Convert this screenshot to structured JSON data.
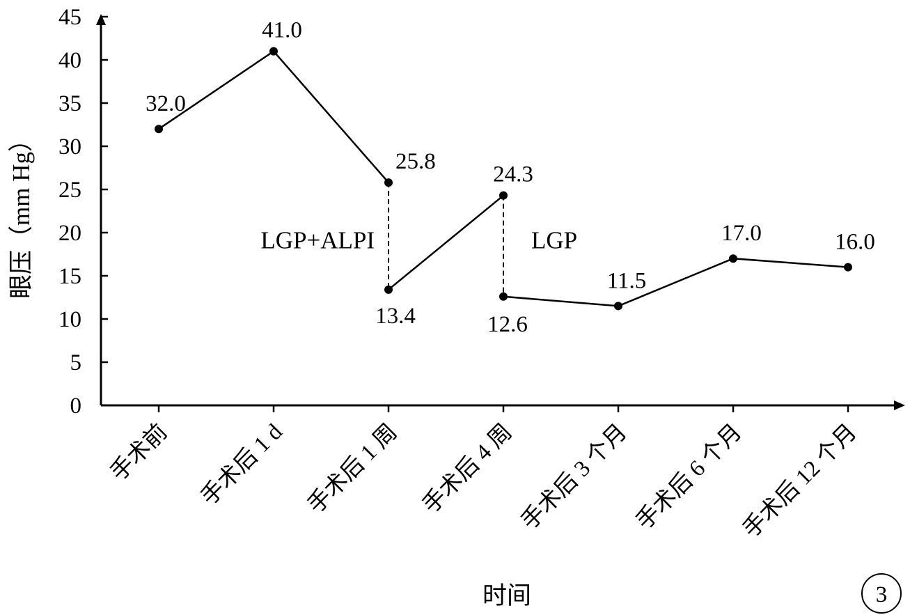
{
  "chart_data": {
    "type": "line",
    "title": "",
    "xlabel": "时间",
    "ylabel": "眼压（mm Hg）",
    "ylim": [
      0,
      45
    ],
    "yticks": [
      0,
      5,
      10,
      15,
      20,
      25,
      30,
      35,
      40,
      45
    ],
    "categories": [
      "手术前",
      "手术后 1 d",
      "手术后 1 周",
      "手术后 4 周",
      "手术后 3 个月",
      "手术后 6 个月",
      "手术后 12 个月"
    ],
    "segments": [
      {
        "points": [
          {
            "cat": 0,
            "y": 32.0,
            "label": "32.0"
          },
          {
            "cat": 1,
            "y": 41.0,
            "label": "41.0"
          },
          {
            "cat": 2,
            "y": 25.8,
            "label": "25.8"
          }
        ]
      },
      {
        "points": [
          {
            "cat": 2,
            "y": 13.4,
            "label": "13.4"
          },
          {
            "cat": 3,
            "y": 24.3,
            "label": "24.3"
          }
        ]
      },
      {
        "points": [
          {
            "cat": 3,
            "y": 12.6,
            "label": "12.6"
          },
          {
            "cat": 4,
            "y": 11.5,
            "label": "11.5"
          },
          {
            "cat": 5,
            "y": 17.0,
            "label": "17.0"
          },
          {
            "cat": 6,
            "y": 16.0,
            "label": "16.0"
          }
        ]
      }
    ],
    "drops": [
      {
        "cat": 2,
        "from": 25.8,
        "to": 13.4,
        "style": "dashed"
      },
      {
        "cat": 3,
        "from": 24.3,
        "to": 12.6,
        "style": "dashed"
      }
    ],
    "annotations": [
      {
        "text": "LGP+ALPI",
        "near_cat": 2
      },
      {
        "text": "LGP",
        "near_cat": 3
      }
    ],
    "grid": false,
    "legend": "none"
  },
  "panel_label": "3"
}
